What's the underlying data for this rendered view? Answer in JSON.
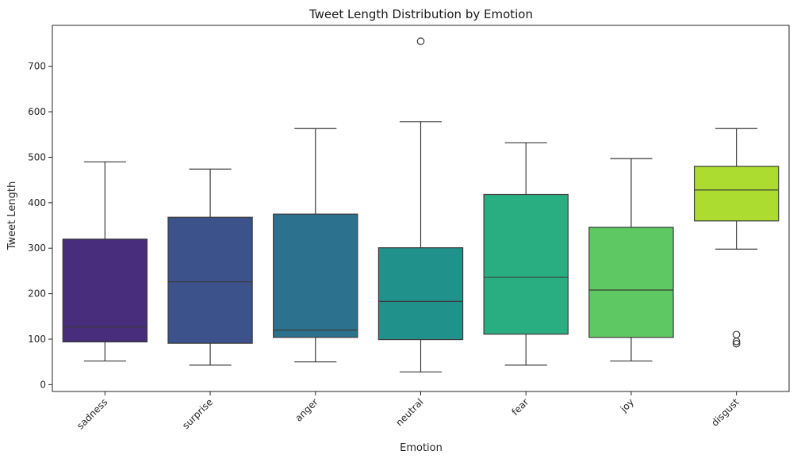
{
  "chart_data": {
    "type": "box",
    "title": "Tweet Length Distribution by Emotion",
    "xlabel": "Emotion",
    "ylabel": "Tweet Length",
    "ylim": [
      -15,
      790
    ],
    "yticks": [
      0,
      100,
      200,
      300,
      400,
      500,
      600,
      700
    ],
    "grid": false,
    "categories": [
      "sadness",
      "surprise",
      "anger",
      "neutral",
      "fear",
      "joy",
      "disgust"
    ],
    "boxes": [
      {
        "category": "sadness",
        "color": "#472d7b",
        "whisker_low": 52,
        "q1": 94,
        "median": 127,
        "q3": 320,
        "whisker_high": 490,
        "outliers": []
      },
      {
        "category": "surprise",
        "color": "#3b528b",
        "whisker_low": 43,
        "q1": 91,
        "median": 226,
        "q3": 368,
        "whisker_high": 474,
        "outliers": []
      },
      {
        "category": "anger",
        "color": "#2c728e",
        "whisker_low": 50,
        "q1": 104,
        "median": 120,
        "q3": 375,
        "whisker_high": 563,
        "outliers": []
      },
      {
        "category": "neutral",
        "color": "#21918c",
        "whisker_low": 28,
        "q1": 99,
        "median": 183,
        "q3": 301,
        "whisker_high": 578,
        "outliers": [
          755
        ]
      },
      {
        "category": "fear",
        "color": "#28ae80",
        "whisker_low": 43,
        "q1": 111,
        "median": 236,
        "q3": 418,
        "whisker_high": 532,
        "outliers": []
      },
      {
        "category": "joy",
        "color": "#5ec962",
        "whisker_low": 52,
        "q1": 104,
        "median": 208,
        "q3": 346,
        "whisker_high": 497,
        "outliers": []
      },
      {
        "category": "disgust",
        "color": "#addc30",
        "whisker_low": 298,
        "q1": 360,
        "median": 428,
        "q3": 480,
        "whisker_high": 563,
        "outliers": [
          110,
          95,
          90
        ]
      }
    ]
  }
}
